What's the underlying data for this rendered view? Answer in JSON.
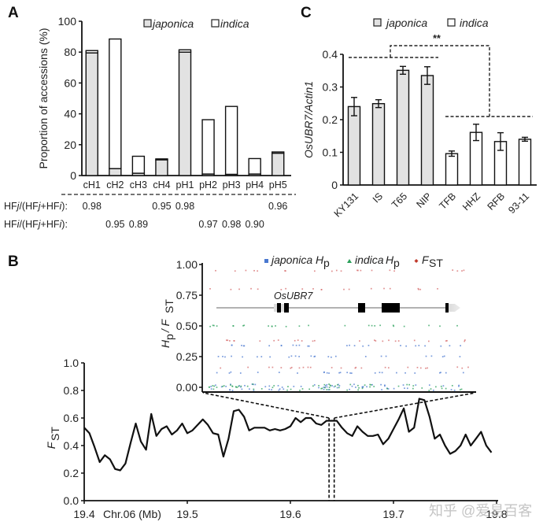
{
  "panels": {
    "a": "A",
    "b": "B",
    "c": "C"
  },
  "chart_data": [
    {
      "id": "A",
      "type": "bar",
      "stacked": true,
      "title": "",
      "ylabel": "Proportion of accessions (%)",
      "xlabel": "",
      "ylim": [
        0,
        100
      ],
      "yticks": [
        "0",
        "20",
        "40",
        "60",
        "80",
        "100"
      ],
      "categories": [
        "cH1",
        "cH2",
        "cH3",
        "cH4",
        "pH1",
        "pH2",
        "pH3",
        "pH4",
        "pH5"
      ],
      "legend": {
        "position": "top-right",
        "entries": [
          "japonica",
          "indica"
        ]
      },
      "series": [
        {
          "name": "japonica",
          "values": [
            79.5,
            4.5,
            1.5,
            10.2,
            80,
            1,
            0.8,
            1,
            14.5
          ]
        },
        {
          "name": "indica",
          "values": [
            1.5,
            84,
            11,
            0.6,
            1.5,
            35.2,
            44,
            10,
            0.8
          ]
        }
      ],
      "colors": {
        "japonica": "#e2e2e2",
        "indica": "#ffffff"
      },
      "ratio_rows": [
        {
          "label_parts": [
            "HF",
            "j",
            "/(HF",
            "j",
            "+HF",
            "i",
            "):"
          ],
          "values": [
            "0.98",
            "",
            "",
            "0.95",
            "0.98",
            "",
            "",
            "",
            "0.96"
          ]
        },
        {
          "label_parts": [
            "HF",
            "i",
            "/(HF",
            "j",
            "+HF",
            "i",
            "):"
          ],
          "values": [
            "",
            "0.95",
            "0.89",
            "",
            "",
            "0.97",
            "0.98",
            "0.90",
            ""
          ]
        }
      ]
    },
    {
      "id": "C",
      "type": "bar",
      "title": "",
      "ylabel": "OsUBR7/Actin1",
      "xlabel": "",
      "ylim": [
        0,
        0.4
      ],
      "yticks": [
        "0",
        "0.1",
        "0.2",
        "0.3",
        "0.4"
      ],
      "categories": [
        "KY131",
        "IS",
        "T65",
        "NIP",
        "TFB",
        "HHZ",
        "RFB",
        "93-11"
      ],
      "groups": [
        "japonica",
        "japonica",
        "japonica",
        "japonica",
        "indica",
        "indica",
        "indica",
        "indica"
      ],
      "values": [
        0.24,
        0.249,
        0.351,
        0.335,
        0.096,
        0.161,
        0.133,
        0.14
      ],
      "errors": [
        0.028,
        0.012,
        0.012,
        0.027,
        0.008,
        0.025,
        0.027,
        0.006
      ],
      "legend": {
        "position": "top",
        "entries": [
          "japonica",
          "indica"
        ]
      },
      "significance": "**",
      "colors": {
        "japonica": "#e2e2e2",
        "indica": "#ffffff"
      }
    },
    {
      "id": "B-main",
      "type": "line",
      "ylabel_main": "F",
      "ylabel_sub": "ST",
      "xlabel": "Chr.06 (Mb)",
      "xlim": [
        19.4,
        19.8
      ],
      "ylim": [
        0,
        1.0
      ],
      "xticks": [
        "19.4",
        "19.5",
        "19.6",
        "19.7",
        "19.8"
      ],
      "yticks": [
        "0.0",
        "0.2",
        "0.4",
        "0.6",
        "0.8",
        "1.0"
      ],
      "gene_window_mb": [
        19.6375,
        19.6425
      ],
      "x": [
        19.4,
        19.405,
        19.41,
        19.415,
        19.42,
        19.425,
        19.43,
        19.435,
        19.44,
        19.445,
        19.45,
        19.455,
        19.46,
        19.465,
        19.47,
        19.475,
        19.48,
        19.485,
        19.49,
        19.495,
        19.5,
        19.505,
        19.51,
        19.515,
        19.52,
        19.525,
        19.53,
        19.535,
        19.54,
        19.545,
        19.55,
        19.555,
        19.56,
        19.565,
        19.57,
        19.575,
        19.58,
        19.585,
        19.59,
        19.595,
        19.6,
        19.605,
        19.61,
        19.615,
        19.62,
        19.625,
        19.63,
        19.635,
        19.64,
        19.645,
        19.65,
        19.655,
        19.66,
        19.665,
        19.67,
        19.675,
        19.68,
        19.685,
        19.69,
        19.695,
        19.7,
        19.705,
        19.71,
        19.715,
        19.72,
        19.725,
        19.73,
        19.735,
        19.74,
        19.745,
        19.75,
        19.755,
        19.76,
        19.765,
        19.77,
        19.775,
        19.78,
        19.785,
        19.79,
        19.795
      ],
      "y": [
        0.53,
        0.49,
        0.39,
        0.28,
        0.33,
        0.3,
        0.23,
        0.22,
        0.27,
        0.42,
        0.56,
        0.43,
        0.37,
        0.63,
        0.47,
        0.52,
        0.54,
        0.48,
        0.51,
        0.56,
        0.49,
        0.51,
        0.55,
        0.59,
        0.55,
        0.49,
        0.48,
        0.32,
        0.45,
        0.65,
        0.66,
        0.61,
        0.51,
        0.53,
        0.53,
        0.53,
        0.51,
        0.52,
        0.51,
        0.52,
        0.54,
        0.6,
        0.57,
        0.6,
        0.6,
        0.56,
        0.55,
        0.58,
        0.58,
        0.58,
        0.53,
        0.49,
        0.47,
        0.54,
        0.5,
        0.47,
        0.47,
        0.48,
        0.41,
        0.45,
        0.52,
        0.59,
        0.67,
        0.5,
        0.53,
        0.74,
        0.73,
        0.61,
        0.45,
        0.48,
        0.4,
        0.34,
        0.36,
        0.4,
        0.48,
        0.4,
        0.45,
        0.5,
        0.4,
        0.35
      ]
    },
    {
      "id": "B-inset",
      "type": "scatter",
      "ylabel_parts": [
        "H",
        "p",
        " / F",
        "ST"
      ],
      "ylim": [
        0,
        1.0
      ],
      "yticks": [
        "0.00",
        "0.25",
        "0.50",
        "0.75",
        "1.00"
      ],
      "gene_label": "OsUBR7",
      "legend": {
        "position": "top",
        "entries": [
          {
            "name": "japonica",
            "sub": "H",
            "subsub": "p",
            "marker": "square",
            "color": "#4a78d0"
          },
          {
            "name": "indica",
            "sub": "H",
            "subsub": "p",
            "marker": "triangle",
            "color": "#2aa05a"
          },
          {
            "name": "F",
            "subsub": "ST",
            "marker": "diamond",
            "color": "#c0392b"
          }
        ]
      },
      "series": [
        {
          "name": "japonica Hp",
          "color": "#4a78d0",
          "levels": [
            0.0,
            0.12,
            0.25,
            0.34
          ]
        },
        {
          "name": "indica Hp",
          "color": "#2aa05a",
          "levels": [
            0.0,
            0.5
          ]
        },
        {
          "name": "FST",
          "color": "#d56a6a",
          "levels": [
            0.16,
            0.38,
            0.8,
            0.95
          ]
        }
      ]
    }
  ],
  "watermark": "知乎 @爱易百客"
}
